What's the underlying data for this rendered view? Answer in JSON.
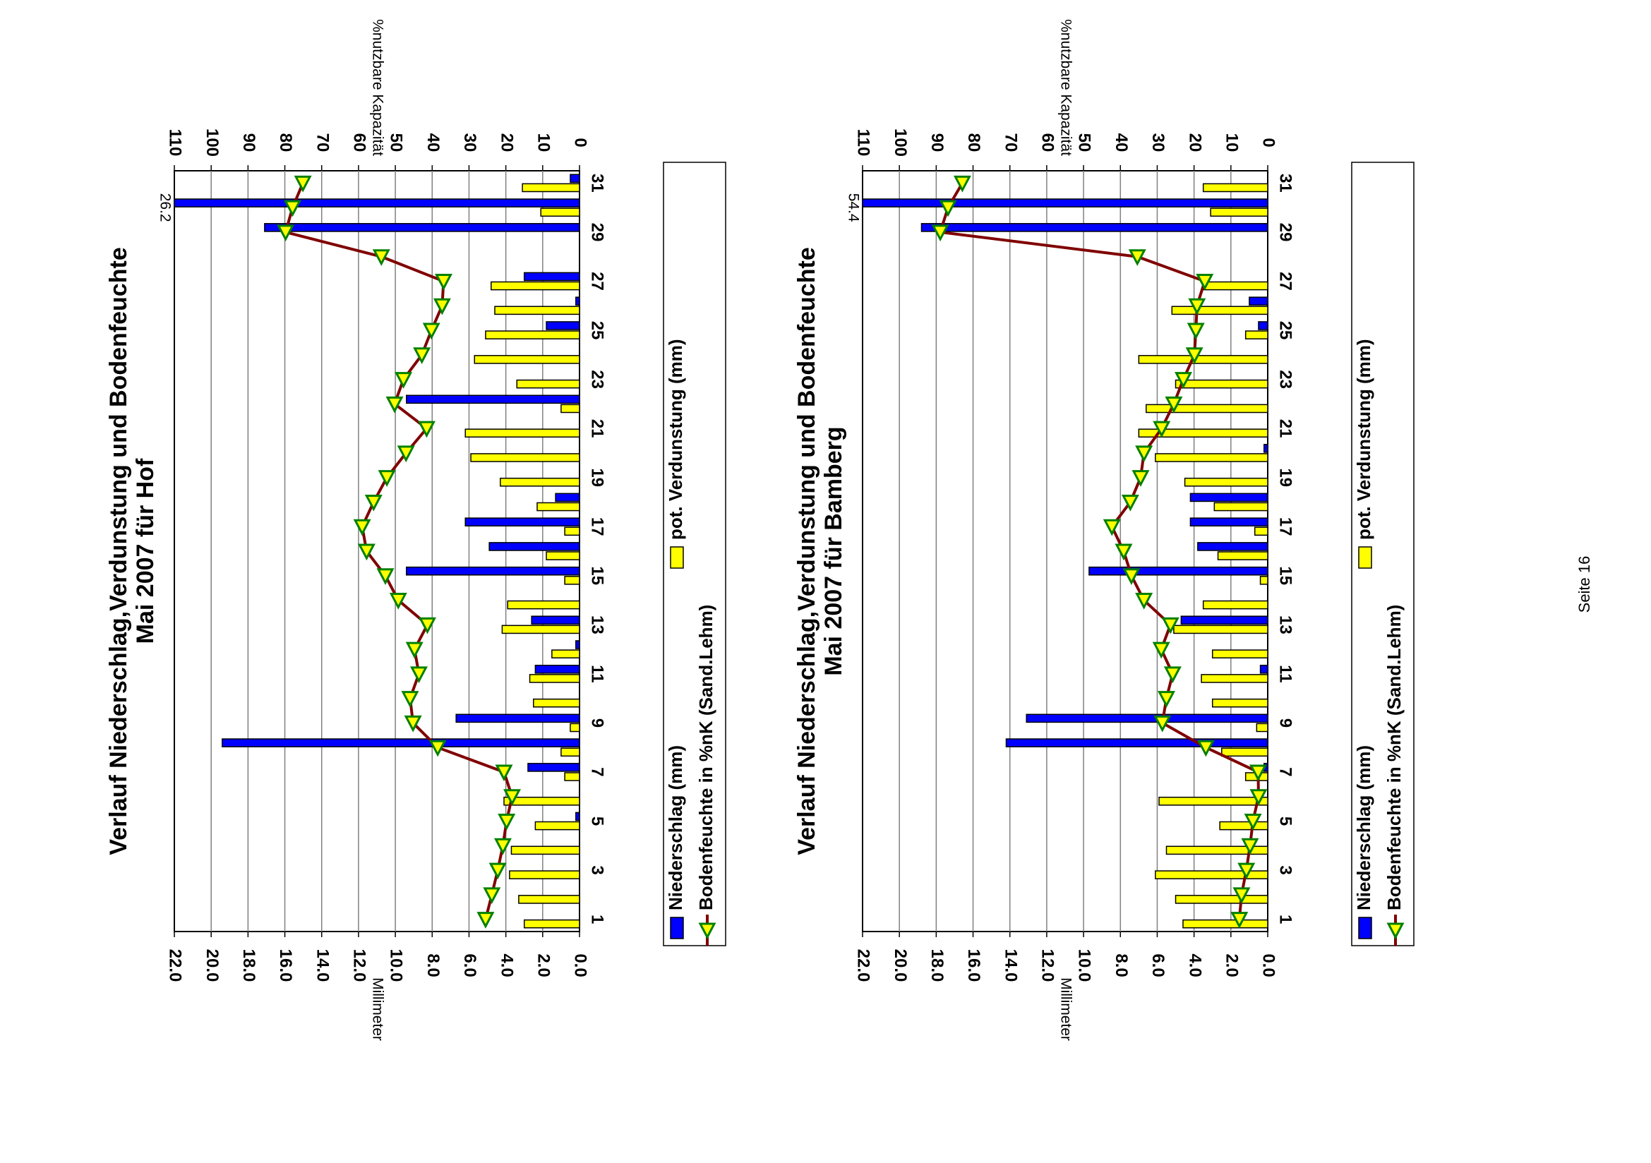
{
  "page": {
    "footer": "Seite 16"
  },
  "colors": {
    "precip": "#0000ff",
    "evap": "#ffff00",
    "soil": "#800000",
    "marker_fill": "#ffff00",
    "marker_edge": "#008000"
  },
  "chart_data": [
    {
      "type": "bar",
      "title_line1": "Verlauf Niederschlag,Verdunstung und Bodenfeuchte",
      "title_line2": "Mai 2007 für Hof",
      "ylabel_left": "Millimeter",
      "ylabel_right": "%nutzbare Kapazität",
      "ylim_left": [
        0,
        22
      ],
      "ylim_right": [
        0,
        110
      ],
      "left_ticks": [
        "0.0",
        "2.0",
        "4.0",
        "6.0",
        "8.0",
        "10.0",
        "12.0",
        "14.0",
        "16.0",
        "18.0",
        "20.0",
        "22.0"
      ],
      "right_ticks": [
        "0",
        "10",
        "20",
        "30",
        "40",
        "50",
        "60",
        "70",
        "80",
        "90",
        "100",
        "110"
      ],
      "x_tick_labels": [
        "1",
        "3",
        "5",
        "7",
        "9",
        "11",
        "13",
        "15",
        "17",
        "19",
        "21",
        "23",
        "25",
        "27",
        "29",
        "31"
      ],
      "days": [
        1,
        2,
        3,
        4,
        5,
        6,
        7,
        8,
        9,
        10,
        11,
        12,
        13,
        14,
        15,
        16,
        17,
        18,
        19,
        20,
        21,
        22,
        23,
        24,
        25,
        26,
        27,
        28,
        29,
        30,
        31
      ],
      "grid": true,
      "legend_position": "bottom",
      "series": [
        {
          "name": "Niederschlag (mm)",
          "type": "bar",
          "values": [
            0,
            0,
            0,
            0,
            0.2,
            0,
            2.8,
            19.4,
            6.7,
            0,
            2.4,
            0.2,
            2.6,
            0,
            9.4,
            4.9,
            6.2,
            1.3,
            0,
            0,
            0,
            9.4,
            0,
            0,
            1.8,
            0.2,
            3.0,
            0,
            17.1,
            26.2,
            0.5
          ]
        },
        {
          "name": "pot. Verdunstung (mm)",
          "type": "bar",
          "values": [
            3.0,
            3.3,
            3.8,
            3.7,
            2.4,
            4.1,
            0.8,
            1.0,
            0.5,
            2.5,
            2.7,
            1.5,
            4.2,
            3.9,
            0.8,
            1.8,
            0.8,
            2.3,
            4.3,
            5.9,
            6.2,
            1.0,
            3.4,
            5.7,
            5.1,
            4.6,
            4.8,
            0,
            0,
            2.1,
            3.1
          ]
        },
        {
          "name": "Bodenfeuchte in %nK (Sand.Lehm)",
          "type": "line",
          "values": [
            25.5,
            23.8,
            22.2,
            20.8,
            19.8,
            18.3,
            20.5,
            38.5,
            45.2,
            46.0,
            43.6,
            44.8,
            41.3,
            49.2,
            52.7,
            57.8,
            59.0,
            55.9,
            52.3,
            47.1,
            41.5,
            50.2,
            47.8,
            42.8,
            40.2,
            37.3,
            36.9,
            53.8,
            79.8,
            77.9,
            75.1
          ]
        }
      ],
      "data_labels": [
        {
          "day": 30,
          "text": "26.2"
        }
      ]
    },
    {
      "type": "bar",
      "title_line1": "Verlauf Niederschlag,Verdunstung und Bodenfeuchte",
      "title_line2": "Mai 2007 für Bamberg",
      "ylabel_left": "Millimeter",
      "ylabel_right": "%nutzbare Kapazität",
      "ylim_left": [
        0,
        22
      ],
      "ylim_right": [
        0,
        110
      ],
      "left_ticks": [
        "0.0",
        "2.0",
        "4.0",
        "6.0",
        "8.0",
        "10.0",
        "12.0",
        "14.0",
        "16.0",
        "18.0",
        "20.0",
        "22.0"
      ],
      "right_ticks": [
        "0",
        "10",
        "20",
        "30",
        "40",
        "50",
        "60",
        "70",
        "80",
        "90",
        "100",
        "110"
      ],
      "x_tick_labels": [
        "1",
        "3",
        "5",
        "7",
        "9",
        "11",
        "13",
        "15",
        "17",
        "19",
        "21",
        "23",
        "25",
        "27",
        "29",
        "31"
      ],
      "days": [
        1,
        2,
        3,
        4,
        5,
        6,
        7,
        8,
        9,
        10,
        11,
        12,
        13,
        14,
        15,
        16,
        17,
        18,
        19,
        20,
        21,
        22,
        23,
        24,
        25,
        26,
        27,
        28,
        29,
        30,
        31
      ],
      "grid": true,
      "legend_position": "bottom",
      "series": [
        {
          "name": "Niederschlag (mm)",
          "type": "bar",
          "values": [
            0,
            0,
            0,
            0,
            0,
            0,
            0.2,
            14.2,
            13.1,
            0,
            0.4,
            0,
            4.7,
            0,
            9.7,
            3.8,
            4.2,
            4.2,
            0,
            0.2,
            0,
            0,
            0,
            0,
            0.5,
            1.0,
            0,
            0,
            18.8,
            54.4,
            0
          ]
        },
        {
          "name": "pot. Verdunstung (mm)",
          "type": "bar",
          "values": [
            4.6,
            5.0,
            6.1,
            5.5,
            2.6,
            5.9,
            1.2,
            2.5,
            0.6,
            3.0,
            3.6,
            3.0,
            5.1,
            3.5,
            0.4,
            2.7,
            0.7,
            2.9,
            4.5,
            6.1,
            7.0,
            6.6,
            5.0,
            7.0,
            1.2,
            5.2,
            3.5,
            0,
            0,
            3.1,
            3.5
          ]
        },
        {
          "name": "Bodenfeuchte in %nK (Sand.Lehm)",
          "type": "line",
          "values": [
            7.7,
            7.1,
            5.8,
            4.8,
            4.0,
            2.5,
            2.6,
            16.8,
            28.6,
            27.5,
            25.8,
            28.9,
            26.4,
            33.6,
            37.0,
            39.1,
            42.3,
            37.3,
            34.5,
            33.6,
            28.8,
            25.5,
            22.9,
            19.9,
            19.5,
            19.2,
            17.1,
            35.4,
            88.9,
            86.8,
            82.9
          ]
        }
      ],
      "data_labels": [
        {
          "day": 30,
          "text": "54.4"
        }
      ]
    }
  ]
}
